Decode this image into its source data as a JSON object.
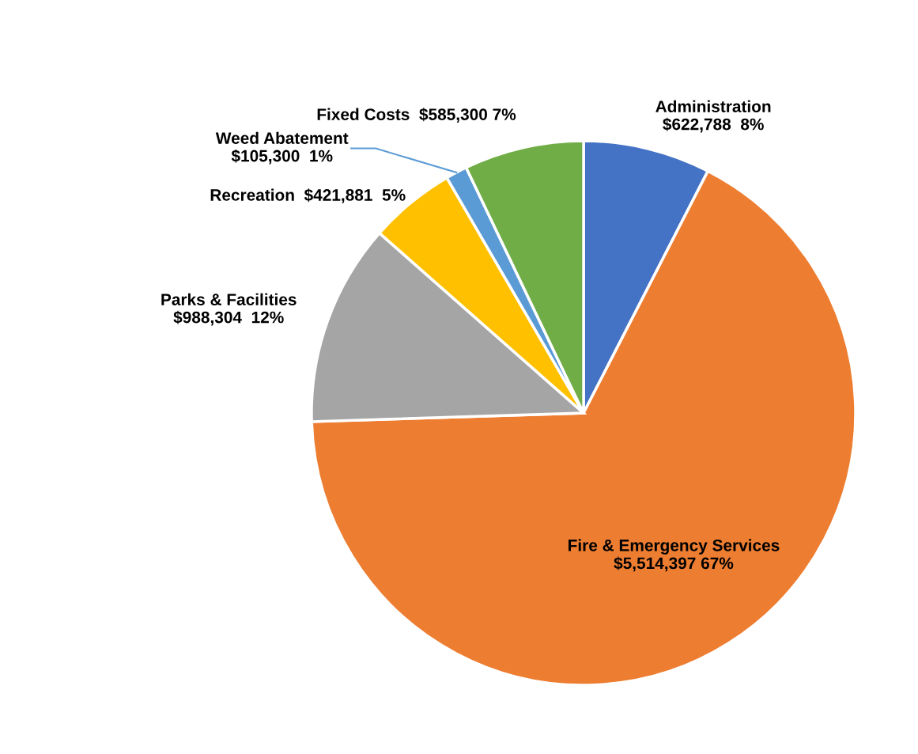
{
  "chart_data": {
    "type": "pie",
    "categories": [
      "Administration",
      "Fire & Emergency Services",
      "Parks & Facilities",
      "Recreation",
      "Weed Abatement",
      "Fixed Costs"
    ],
    "values": [
      622788,
      5514397,
      988304,
      421881,
      105300,
      585300
    ],
    "value_labels": [
      "$622,788  8%",
      "$5,514,397 67%",
      "$988,304  12%",
      "$421,881  5%",
      "$105,300  1%",
      "$585,300 7%"
    ],
    "colors": [
      "#4472c4",
      "#ed7d31",
      "#a5a5a5",
      "#ffc000",
      "#5b9bd5",
      "#70ad47"
    ],
    "legend": false
  }
}
